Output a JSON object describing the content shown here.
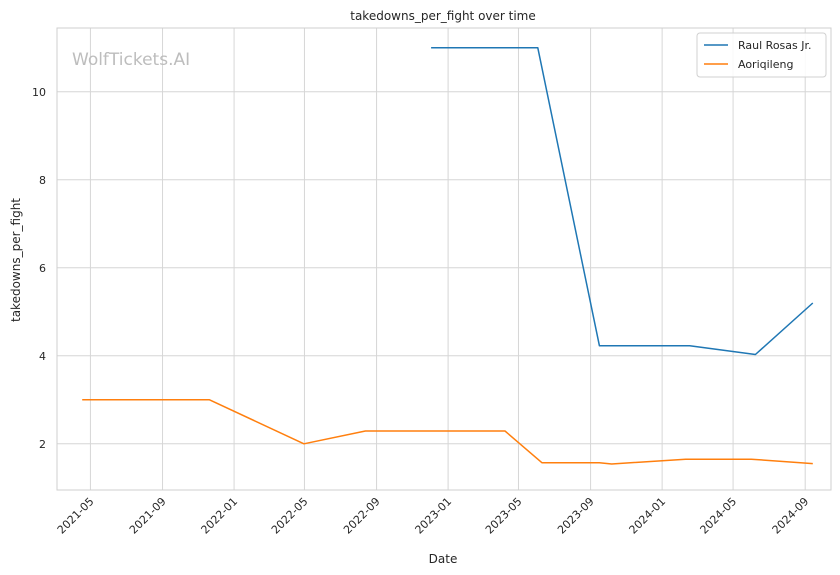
{
  "watermark": "WolfTickets.AI",
  "chart_data": {
    "type": "line",
    "title": "takedowns_per_fight over time",
    "xlabel": "Date",
    "ylabel": "takedowns_per_fight",
    "xlim": [
      "2021-03-05",
      "2024-10-15"
    ],
    "ylim": [
      0.95,
      11.45
    ],
    "x_ticks": [
      "2021-05-01",
      "2021-09-01",
      "2022-01-01",
      "2022-05-01",
      "2022-09-01",
      "2023-01-01",
      "2023-05-01",
      "2023-09-01",
      "2024-01-01",
      "2024-05-01",
      "2024-09-01"
    ],
    "x_tick_labels": [
      "2021-05",
      "2021-09",
      "2022-01",
      "2022-05",
      "2022-09",
      "2023-01",
      "2023-05",
      "2023-09",
      "2024-01",
      "2024-05",
      "2024-09"
    ],
    "y_ticks": [
      2,
      4,
      6,
      8,
      10
    ],
    "y_tick_labels": [
      "2",
      "4",
      "6",
      "8",
      "10"
    ],
    "grid": true,
    "legend_position": "top-right",
    "series": [
      {
        "name": "Raul Rosas Jr.",
        "color": "#1f77b4",
        "points": [
          {
            "x": "2022-12-03",
            "y": 11.0
          },
          {
            "x": "2023-06-03",
            "y": 11.0
          },
          {
            "x": "2023-09-16",
            "y": 4.23
          },
          {
            "x": "2024-02-17",
            "y": 4.23
          },
          {
            "x": "2024-06-08",
            "y": 4.03
          },
          {
            "x": "2024-09-14",
            "y": 5.2
          }
        ]
      },
      {
        "name": "Aoriqileng",
        "color": "#ff7f0e",
        "points": [
          {
            "x": "2021-04-17",
            "y": 3.0
          },
          {
            "x": "2021-11-20",
            "y": 3.0
          },
          {
            "x": "2022-04-30",
            "y": 2.0
          },
          {
            "x": "2022-08-13",
            "y": 2.29
          },
          {
            "x": "2023-04-08",
            "y": 2.29
          },
          {
            "x": "2023-06-10",
            "y": 1.57
          },
          {
            "x": "2023-09-16",
            "y": 1.57
          },
          {
            "x": "2023-10-07",
            "y": 1.54
          },
          {
            "x": "2024-02-10",
            "y": 1.65
          },
          {
            "x": "2024-06-01",
            "y": 1.65
          },
          {
            "x": "2024-09-14",
            "y": 1.55
          }
        ]
      }
    ]
  }
}
